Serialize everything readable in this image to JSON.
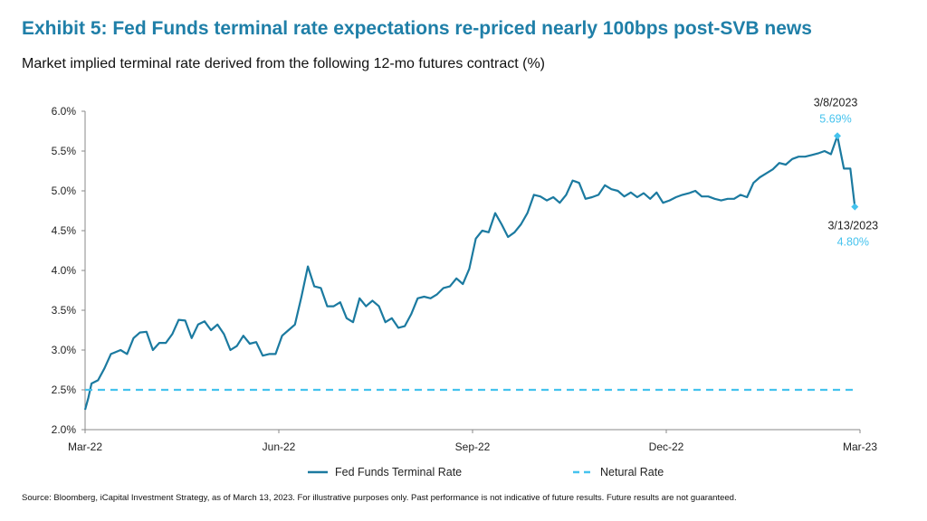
{
  "header": {
    "title": "Exhibit 5: Fed Funds terminal rate expectations re-priced nearly 100bps post-SVB news",
    "subtitle": "Market implied terminal rate derived from the following 12-mo futures contract (%)"
  },
  "footer": {
    "source": "Source: Bloomberg, iCapital Investment Strategy, as of March 13, 2023. For illustrative purposes only. Past performance is not indicative of future results. Future results are not guaranteed."
  },
  "colors": {
    "title": "#1f7fa8",
    "series_main": "#1b7aa0",
    "series_neutral": "#45c3ee",
    "annotation": "#45c3ee",
    "axis": "#888888"
  },
  "chart_data": {
    "type": "line",
    "title": "Exhibit 5: Fed Funds terminal rate expectations re-priced nearly 100bps post-SVB news",
    "xlabel": "",
    "ylabel": "",
    "ylim": [
      2.0,
      6.0
    ],
    "xlim": [
      0,
      12
    ],
    "x_unit": "months since Mar-2022",
    "grid": false,
    "legend_position": "bottom",
    "y_ticks": [
      "2.0%",
      "2.5%",
      "3.0%",
      "3.5%",
      "4.0%",
      "4.5%",
      "5.0%",
      "5.5%",
      "6.0%"
    ],
    "x_ticks": [
      {
        "label": "Mar-22",
        "x": 0
      },
      {
        "label": "Jun-22",
        "x": 3
      },
      {
        "label": "Sep-22",
        "x": 6
      },
      {
        "label": "Dec-22",
        "x": 9
      },
      {
        "label": "Mar-23",
        "x": 12
      }
    ],
    "series": [
      {
        "name": "Fed Funds Terminal Rate",
        "style": "solid",
        "points": [
          [
            0.0,
            2.25
          ],
          [
            0.05,
            2.4
          ],
          [
            0.1,
            2.58
          ],
          [
            0.2,
            2.62
          ],
          [
            0.3,
            2.77
          ],
          [
            0.4,
            2.95
          ],
          [
            0.55,
            3.0
          ],
          [
            0.65,
            2.95
          ],
          [
            0.75,
            3.15
          ],
          [
            0.85,
            3.22
          ],
          [
            0.95,
            3.23
          ],
          [
            1.05,
            3.0
          ],
          [
            1.15,
            3.09
          ],
          [
            1.25,
            3.09
          ],
          [
            1.35,
            3.2
          ],
          [
            1.45,
            3.38
          ],
          [
            1.55,
            3.37
          ],
          [
            1.65,
            3.15
          ],
          [
            1.75,
            3.32
          ],
          [
            1.85,
            3.36
          ],
          [
            1.95,
            3.25
          ],
          [
            2.05,
            3.32
          ],
          [
            2.15,
            3.2
          ],
          [
            2.25,
            3.0
          ],
          [
            2.35,
            3.05
          ],
          [
            2.45,
            3.18
          ],
          [
            2.55,
            3.08
          ],
          [
            2.65,
            3.1
          ],
          [
            2.75,
            2.93
          ],
          [
            2.85,
            2.95
          ],
          [
            2.95,
            2.95
          ],
          [
            3.05,
            3.18
          ],
          [
            3.15,
            3.25
          ],
          [
            3.25,
            3.32
          ],
          [
            3.35,
            3.67
          ],
          [
            3.45,
            4.05
          ],
          [
            3.55,
            3.8
          ],
          [
            3.65,
            3.78
          ],
          [
            3.75,
            3.55
          ],
          [
            3.85,
            3.55
          ],
          [
            3.95,
            3.6
          ],
          [
            4.05,
            3.4
          ],
          [
            4.15,
            3.35
          ],
          [
            4.25,
            3.65
          ],
          [
            4.35,
            3.55
          ],
          [
            4.45,
            3.62
          ],
          [
            4.55,
            3.55
          ],
          [
            4.65,
            3.35
          ],
          [
            4.75,
            3.4
          ],
          [
            4.85,
            3.28
          ],
          [
            4.95,
            3.3
          ],
          [
            5.05,
            3.45
          ],
          [
            5.15,
            3.65
          ],
          [
            5.25,
            3.67
          ],
          [
            5.35,
            3.65
          ],
          [
            5.45,
            3.7
          ],
          [
            5.55,
            3.78
          ],
          [
            5.65,
            3.8
          ],
          [
            5.75,
            3.9
          ],
          [
            5.85,
            3.83
          ],
          [
            5.95,
            4.02
          ],
          [
            6.05,
            4.4
          ],
          [
            6.15,
            4.5
          ],
          [
            6.25,
            4.48
          ],
          [
            6.35,
            4.72
          ],
          [
            6.45,
            4.58
          ],
          [
            6.55,
            4.42
          ],
          [
            6.65,
            4.48
          ],
          [
            6.75,
            4.58
          ],
          [
            6.85,
            4.72
          ],
          [
            6.95,
            4.95
          ],
          [
            7.05,
            4.93
          ],
          [
            7.15,
            4.88
          ],
          [
            7.25,
            4.92
          ],
          [
            7.35,
            4.85
          ],
          [
            7.45,
            4.95
          ],
          [
            7.55,
            5.13
          ],
          [
            7.65,
            5.1
          ],
          [
            7.75,
            4.9
          ],
          [
            7.85,
            4.92
          ],
          [
            7.95,
            4.95
          ],
          [
            8.05,
            5.07
          ],
          [
            8.15,
            5.02
          ],
          [
            8.25,
            5.0
          ],
          [
            8.35,
            4.93
          ],
          [
            8.45,
            4.98
          ],
          [
            8.55,
            4.92
          ],
          [
            8.65,
            4.97
          ],
          [
            8.75,
            4.9
          ],
          [
            8.85,
            4.98
          ],
          [
            8.95,
            4.85
          ],
          [
            9.05,
            4.88
          ],
          [
            9.15,
            4.92
          ],
          [
            9.25,
            4.95
          ],
          [
            9.35,
            4.97
          ],
          [
            9.45,
            5.0
          ],
          [
            9.55,
            4.93
          ],
          [
            9.65,
            4.93
          ],
          [
            9.75,
            4.9
          ],
          [
            9.85,
            4.88
          ],
          [
            9.95,
            4.9
          ],
          [
            10.05,
            4.9
          ],
          [
            10.15,
            4.95
          ],
          [
            10.25,
            4.92
          ],
          [
            10.35,
            5.1
          ],
          [
            10.45,
            5.17
          ],
          [
            10.55,
            5.22
          ],
          [
            10.65,
            5.27
          ],
          [
            10.75,
            5.35
          ],
          [
            10.85,
            5.33
          ],
          [
            10.95,
            5.4
          ],
          [
            11.05,
            5.43
          ],
          [
            11.15,
            5.43
          ],
          [
            11.25,
            5.45
          ],
          [
            11.35,
            5.47
          ],
          [
            11.45,
            5.5
          ],
          [
            11.55,
            5.46
          ],
          [
            11.65,
            5.69
          ],
          [
            11.75,
            5.28
          ],
          [
            11.85,
            5.28
          ],
          [
            11.92,
            4.8
          ]
        ]
      },
      {
        "name": "Netural Rate",
        "style": "dashed",
        "points": [
          [
            0.0,
            2.5
          ],
          [
            11.92,
            2.5
          ]
        ]
      }
    ],
    "annotations": [
      {
        "date": "3/8/2023",
        "value": "5.69%",
        "x": 11.65,
        "y": 5.69,
        "position": "above"
      },
      {
        "date": "3/13/2023",
        "value": "4.80%",
        "x": 11.92,
        "y": 4.8,
        "position": "below"
      }
    ]
  }
}
